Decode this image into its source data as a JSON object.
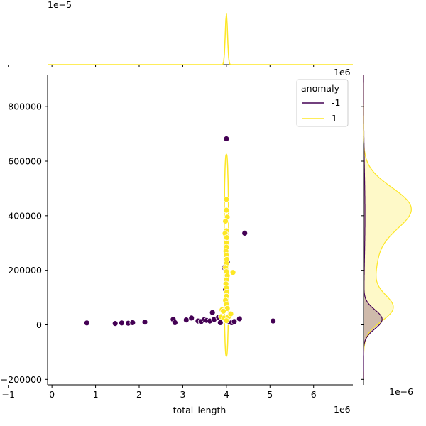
{
  "colors": {
    "anomaly_neg": "#440154",
    "anomaly_pos": "#fde725",
    "axis": "#000000",
    "background": "#ffffff"
  },
  "chart_data": {
    "type": "scatter",
    "title": "",
    "xlabel": "total_length",
    "ylabel": "",
    "x_offset_text": "1e6",
    "y_offset_text": "1e6",
    "top_marginal_offset_text": "1e−5",
    "right_marginal_offset_text": "1e−6",
    "xlim": [
      -0.1,
      6.9
    ],
    "ylim": [
      -220000,
      915000
    ],
    "x_ticks": [
      -1,
      0,
      1,
      2,
      3,
      4,
      5,
      6
    ],
    "x_tick_labels": [
      "−1",
      "0",
      "1",
      "2",
      "3",
      "4",
      "5",
      "6"
    ],
    "y_ticks": [
      -200000,
      0,
      200000,
      400000,
      600000,
      800000
    ],
    "y_tick_labels": [
      "−200000",
      "0",
      "200000",
      "400000",
      "600000",
      "800000"
    ],
    "legend": {
      "title": "anomaly",
      "placement": "top-right",
      "entries": [
        "-1",
        "1"
      ]
    },
    "series": [
      {
        "name": "-1",
        "color": "#440154",
        "points": [
          [
            0.8,
            7000
          ],
          [
            1.45,
            5000
          ],
          [
            1.6,
            7000
          ],
          [
            1.75,
            6000
          ],
          [
            1.85,
            8000
          ],
          [
            2.13,
            10000
          ],
          [
            2.78,
            20000
          ],
          [
            2.82,
            8000
          ],
          [
            3.08,
            18000
          ],
          [
            3.2,
            25000
          ],
          [
            3.35,
            14000
          ],
          [
            3.42,
            12000
          ],
          [
            3.5,
            20000
          ],
          [
            3.55,
            16000
          ],
          [
            3.62,
            14000
          ],
          [
            3.68,
            45000
          ],
          [
            3.72,
            20000
          ],
          [
            3.82,
            28000
          ],
          [
            3.86,
            8000
          ],
          [
            3.95,
            210000
          ],
          [
            3.98,
            130000
          ],
          [
            4.0,
            682000
          ],
          [
            4.0,
            300000
          ],
          [
            4.02,
            230000
          ],
          [
            4.05,
            10000
          ],
          [
            4.12,
            8000
          ],
          [
            4.18,
            12000
          ],
          [
            4.3,
            22000
          ],
          [
            4.42,
            336000
          ],
          [
            5.07,
            14000
          ]
        ]
      },
      {
        "name": "1",
        "color": "#fde725",
        "points": [
          [
            4.0,
            460000
          ],
          [
            4.0,
            420000
          ],
          [
            4.02,
            395000
          ],
          [
            3.98,
            380000
          ],
          [
            4.0,
            345000
          ],
          [
            3.97,
            335000
          ],
          [
            4.01,
            320000
          ],
          [
            4.0,
            300000
          ],
          [
            4.0,
            285000
          ],
          [
            3.99,
            270000
          ],
          [
            4.0,
            255000
          ],
          [
            4.01,
            240000
          ],
          [
            4.0,
            225000
          ],
          [
            3.98,
            210000
          ],
          [
            4.0,
            195000
          ],
          [
            4.02,
            180000
          ],
          [
            4.0,
            165000
          ],
          [
            3.99,
            150000
          ],
          [
            4.0,
            135000
          ],
          [
            4.01,
            120000
          ],
          [
            4.0,
            105000
          ],
          [
            3.98,
            90000
          ],
          [
            4.0,
            75000
          ],
          [
            4.02,
            60000
          ],
          [
            3.9,
            55000
          ],
          [
            3.93,
            50000
          ],
          [
            3.88,
            30000
          ],
          [
            3.95,
            25000
          ],
          [
            4.05,
            30000
          ],
          [
            4.0,
            15000
          ],
          [
            4.15,
            192000
          ],
          [
            4.1,
            40000
          ]
        ]
      }
    ]
  }
}
